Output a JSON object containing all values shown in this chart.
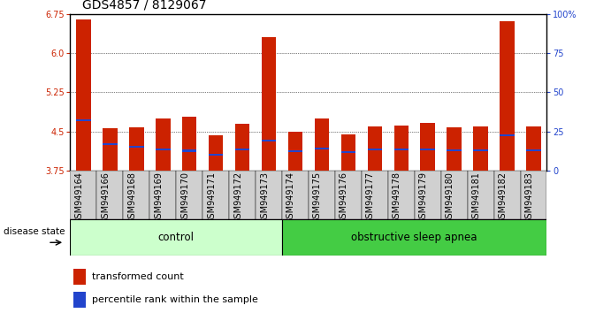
{
  "title": "GDS4857 / 8129067",
  "samples": [
    "GSM949164",
    "GSM949166",
    "GSM949168",
    "GSM949169",
    "GSM949170",
    "GSM949171",
    "GSM949172",
    "GSM949173",
    "GSM949174",
    "GSM949175",
    "GSM949176",
    "GSM949177",
    "GSM949178",
    "GSM949179",
    "GSM949180",
    "GSM949181",
    "GSM949182",
    "GSM949183"
  ],
  "bar_heights": [
    6.65,
    4.56,
    4.58,
    4.75,
    4.78,
    4.42,
    4.65,
    6.3,
    4.5,
    4.75,
    4.45,
    4.6,
    4.62,
    4.67,
    4.58,
    4.6,
    6.62,
    4.6
  ],
  "blue_positions": [
    4.72,
    4.25,
    4.2,
    4.15,
    4.13,
    4.05,
    4.15,
    4.33,
    4.12,
    4.18,
    4.1,
    4.16,
    4.15,
    4.15,
    4.14,
    4.14,
    4.42,
    4.14
  ],
  "control_count": 8,
  "ylim_left": [
    3.75,
    6.75
  ],
  "yticks_left": [
    3.75,
    4.5,
    5.25,
    6.0,
    6.75
  ],
  "yticks_right_vals": [
    0,
    25,
    50,
    75,
    100
  ],
  "yticks_right_labels": [
    "0",
    "25",
    "50",
    "75",
    "100%"
  ],
  "bar_color": "#cc2200",
  "blue_color": "#2244cc",
  "control_bg": "#ccffcc",
  "osa_bg": "#44cc44",
  "control_label": "control",
  "osa_label": "obstructive sleep apnea",
  "disease_state_label": "disease state",
  "legend_red": "transformed count",
  "legend_blue": "percentile rank within the sample",
  "title_fontsize": 10,
  "tick_fontsize": 7,
  "bar_width": 0.55
}
